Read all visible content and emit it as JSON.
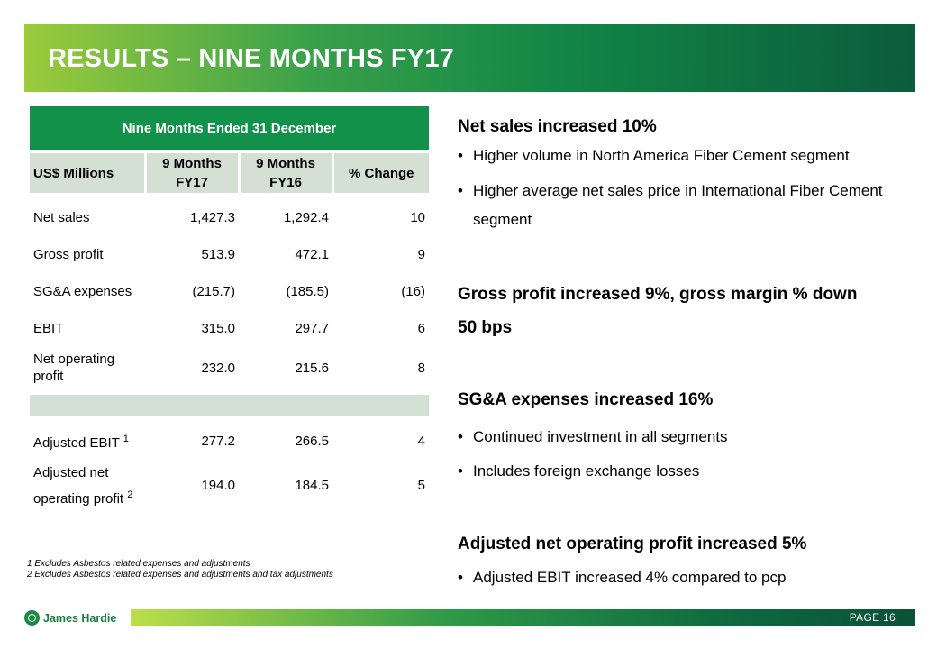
{
  "banner": {
    "title": "RESULTS – NINE MONTHS FY17",
    "colors": {
      "start": "#9ccb3b",
      "end": "#0b5c3c"
    }
  },
  "table": {
    "period_heading": "Nine Months Ended 31 December",
    "columns": {
      "label": "US$ Millions",
      "fy17": "9 Months FY17",
      "fy16": "9 Months FY16",
      "change": "% Change"
    },
    "rows": [
      {
        "label": "Net sales",
        "fy17": "1,427.3",
        "fy16": "1,292.4",
        "change": "10"
      },
      {
        "label": "Gross profit",
        "fy17": "513.9",
        "fy16": "472.1",
        "change": "9"
      },
      {
        "label": "SG&A expenses",
        "fy17": "(215.7)",
        "fy16": "(185.5)",
        "change": "(16)"
      },
      {
        "label": "EBIT",
        "fy17": "315.0",
        "fy16": "297.7",
        "change": "6"
      },
      {
        "label": "Net operating profit",
        "fy17": "232.0",
        "fy16": "215.6",
        "change": "8"
      },
      {
        "label": "Adjusted EBIT",
        "sup": "1",
        "fy17": "277.2",
        "fy16": "266.5",
        "change": "4"
      },
      {
        "label": "Adjusted net operating profit",
        "sup": "2",
        "fy17": "194.0",
        "fy16": "184.5",
        "change": "5"
      }
    ]
  },
  "footnotes": [
    "1  Excludes Asbestos related expenses and adjustments",
    "2  Excludes Asbestos related expenses and adjustments and tax adjustments"
  ],
  "commentary": {
    "net_sales": {
      "heading": "Net sales increased 10%",
      "bullets": [
        "Higher volume in North America Fiber Cement segment",
        "Higher average net sales price in International Fiber Cement segment"
      ]
    },
    "gross_profit": {
      "heading": "Gross profit increased 9%, gross margin % down 50 bps"
    },
    "sga": {
      "heading": "SG&A expenses increased 16%",
      "bullets": [
        "Continued investment in all segments",
        "Includes foreign exchange losses"
      ]
    },
    "adj_nop": {
      "heading": "Adjusted net operating profit increased 5%",
      "bullets": [
        "Adjusted EBIT increased 4% compared to pcp"
      ]
    }
  },
  "footer": {
    "brand": "James Hardie",
    "logo_icon": "james-hardie-logo-icon",
    "page_label": "PAGE   16"
  }
}
